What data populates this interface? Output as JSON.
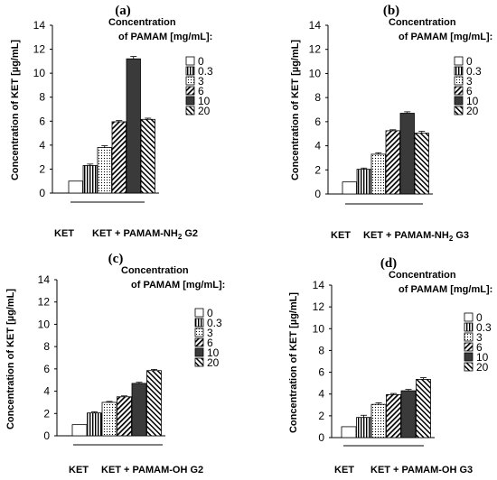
{
  "legend": {
    "title_line1": "Concentration",
    "title_line2": "of PAMAM [mg/mL]:",
    "entries": [
      "0",
      "0.3",
      "3",
      "6",
      "10",
      "20"
    ],
    "patterns": [
      "white",
      "vertical",
      "dots",
      "diagonal-dense",
      "solid-dark",
      "diagonal-back"
    ]
  },
  "colors": {
    "bar_dark": "#3a3a3a",
    "axis": "#000000",
    "background": "#ffffff"
  },
  "chart_data": [
    {
      "type": "bar",
      "panel_label": "(a)",
      "ylabel": "Concentration of KET [µg/mL]",
      "ylim": [
        0,
        14
      ],
      "yticks": [
        "0",
        "2",
        "4",
        "6",
        "8",
        "10",
        "12",
        "14"
      ],
      "categories": [
        "0",
        "0.3",
        "3",
        "6",
        "10",
        "20"
      ],
      "values": [
        1.0,
        2.3,
        3.8,
        5.95,
        11.2,
        6.15
      ],
      "errors": [
        0.0,
        0.12,
        0.15,
        0.1,
        0.2,
        0.1
      ],
      "group_left": "KET",
      "group_right_prefix": "KET + PAMAM-NH",
      "group_right_sub": "2",
      "group_right_suffix": " G2"
    },
    {
      "type": "bar",
      "panel_label": "(b)",
      "ylabel": "Concentration of KET [µg/mL]",
      "ylim": [
        0,
        14
      ],
      "yticks": [
        "0",
        "2",
        "4",
        "6",
        "8",
        "10",
        "12",
        "14"
      ],
      "categories": [
        "0",
        "0.3",
        "3",
        "6",
        "10",
        "20"
      ],
      "values": [
        1.0,
        2.05,
        3.3,
        5.25,
        6.7,
        5.05
      ],
      "errors": [
        0.0,
        0.1,
        0.12,
        0.08,
        0.12,
        0.15
      ],
      "group_left": "KET",
      "group_right_prefix": "KET + PAMAM-NH",
      "group_right_sub": "2",
      "group_right_suffix": " G3"
    },
    {
      "type": "bar",
      "panel_label": "(c)",
      "ylabel": "Concentration of KET [µg/mL]",
      "ylim": [
        0,
        14
      ],
      "yticks": [
        "0",
        "2",
        "4",
        "6",
        "8",
        "10",
        "12",
        "14"
      ],
      "categories": [
        "0",
        "0.3",
        "3",
        "6",
        "10",
        "20"
      ],
      "values": [
        1.0,
        2.05,
        3.0,
        3.5,
        4.7,
        5.85
      ],
      "errors": [
        0.0,
        0.1,
        0.08,
        0.08,
        0.1,
        0.1
      ],
      "group_left": "KET",
      "group_right_prefix": "KET + PAMAM-OH G2",
      "group_right_sub": "",
      "group_right_suffix": ""
    },
    {
      "type": "bar",
      "panel_label": "(d)",
      "ylabel": "Concentration of KET [µg/mL]",
      "ylim": [
        0,
        14
      ],
      "yticks": [
        "0",
        "2",
        "4",
        "6",
        "8",
        "10",
        "12",
        "14"
      ],
      "categories": [
        "0",
        "0.3",
        "3",
        "6",
        "10",
        "20"
      ],
      "values": [
        1.0,
        1.85,
        3.05,
        3.95,
        4.3,
        5.35
      ],
      "errors": [
        0.0,
        0.2,
        0.15,
        0.1,
        0.12,
        0.15
      ],
      "group_left": "KET",
      "group_right_prefix": "KET + PAMAM-OH G3",
      "group_right_sub": "",
      "group_right_suffix": ""
    }
  ]
}
